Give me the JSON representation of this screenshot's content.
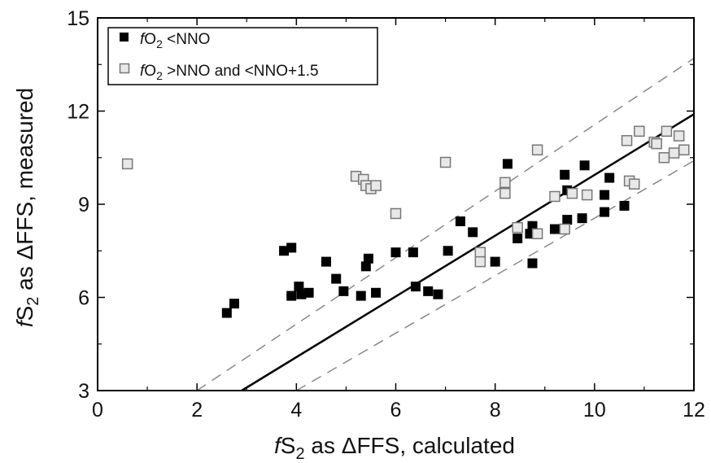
{
  "chart_data": {
    "type": "scatter",
    "xlabel": {
      "italic": "f",
      "main": "S",
      "sub": "2",
      "rest": " as ΔFFS, calculated"
    },
    "ylabel": {
      "italic": "f",
      "main": "S",
      "sub": "2",
      "rest": " as ΔFFS, measured"
    },
    "xlim": [
      0,
      12
    ],
    "ylim": [
      3,
      15
    ],
    "xticks": [
      "0",
      "2",
      "4",
      "6",
      "8",
      "10",
      "12"
    ],
    "yticks": [
      "3",
      "6",
      "9",
      "12",
      "15"
    ],
    "grid": false,
    "legend_position": "top-left",
    "series": [
      {
        "name": "fO2<NNO",
        "legend": {
          "italic": "f",
          "main": "O",
          "sub": "2",
          "rest": " <NNO"
        },
        "marker": "filled-square",
        "color": "#000000",
        "points": [
          [
            2.6,
            5.5
          ],
          [
            2.75,
            5.8
          ],
          [
            3.75,
            7.5
          ],
          [
            3.9,
            7.6
          ],
          [
            3.9,
            6.05
          ],
          [
            4.05,
            6.35
          ],
          [
            4.1,
            6.1
          ],
          [
            4.25,
            6.15
          ],
          [
            4.6,
            7.15
          ],
          [
            4.8,
            6.6
          ],
          [
            4.95,
            6.2
          ],
          [
            5.3,
            6.05
          ],
          [
            5.4,
            7.0
          ],
          [
            5.45,
            7.25
          ],
          [
            5.6,
            6.15
          ],
          [
            6.0,
            7.45
          ],
          [
            6.35,
            7.45
          ],
          [
            6.4,
            6.35
          ],
          [
            6.65,
            6.2
          ],
          [
            6.85,
            6.1
          ],
          [
            7.05,
            7.5
          ],
          [
            7.3,
            8.45
          ],
          [
            7.55,
            8.1
          ],
          [
            8.0,
            7.15
          ],
          [
            8.25,
            10.3
          ],
          [
            8.45,
            7.9
          ],
          [
            8.7,
            8.05
          ],
          [
            8.75,
            8.3
          ],
          [
            8.75,
            7.1
          ],
          [
            9.2,
            8.2
          ],
          [
            9.4,
            9.95
          ],
          [
            9.45,
            9.45
          ],
          [
            9.45,
            8.5
          ],
          [
            9.75,
            8.55
          ],
          [
            9.8,
            10.25
          ],
          [
            10.2,
            8.75
          ],
          [
            10.2,
            9.3
          ],
          [
            10.3,
            9.85
          ],
          [
            10.6,
            8.95
          ]
        ]
      },
      {
        "name": "fO2>NNO and <NNO+1.5",
        "legend": {
          "italic": "f",
          "main": "O",
          "sub": "2",
          "rest": " >NNO and <NNO+1.5"
        },
        "marker": "open-square",
        "color": "#888888",
        "points": [
          [
            0.6,
            10.3
          ],
          [
            5.2,
            9.9
          ],
          [
            5.35,
            9.8
          ],
          [
            5.4,
            9.6
          ],
          [
            5.5,
            9.5
          ],
          [
            5.6,
            9.6
          ],
          [
            6.0,
            8.7
          ],
          [
            7.0,
            10.35
          ],
          [
            7.7,
            7.45
          ],
          [
            7.7,
            7.15
          ],
          [
            8.2,
            9.7
          ],
          [
            8.2,
            9.35
          ],
          [
            8.45,
            8.25
          ],
          [
            8.85,
            8.05
          ],
          [
            8.85,
            10.75
          ],
          [
            9.2,
            9.25
          ],
          [
            9.4,
            8.2
          ],
          [
            9.55,
            9.35
          ],
          [
            9.85,
            9.3
          ],
          [
            10.65,
            11.05
          ],
          [
            10.7,
            9.75
          ],
          [
            10.8,
            9.65
          ],
          [
            10.9,
            11.35
          ],
          [
            11.2,
            11.0
          ],
          [
            11.25,
            10.95
          ],
          [
            11.4,
            10.5
          ],
          [
            11.45,
            11.35
          ],
          [
            11.6,
            10.65
          ],
          [
            11.7,
            11.2
          ],
          [
            11.8,
            10.75
          ]
        ]
      }
    ],
    "lines": [
      {
        "name": "1:1",
        "style": "solid",
        "color": "#000000",
        "points": [
          [
            2.9,
            3.0
          ],
          [
            12.0,
            11.9
          ]
        ]
      },
      {
        "name": "upper",
        "style": "dashed",
        "color": "#888888",
        "points": [
          [
            2.0,
            3.0
          ],
          [
            12.0,
            13.7
          ]
        ]
      },
      {
        "name": "lower",
        "style": "dashed",
        "color": "#888888",
        "points": [
          [
            4.0,
            3.0
          ],
          [
            12.0,
            10.4
          ]
        ]
      }
    ]
  }
}
